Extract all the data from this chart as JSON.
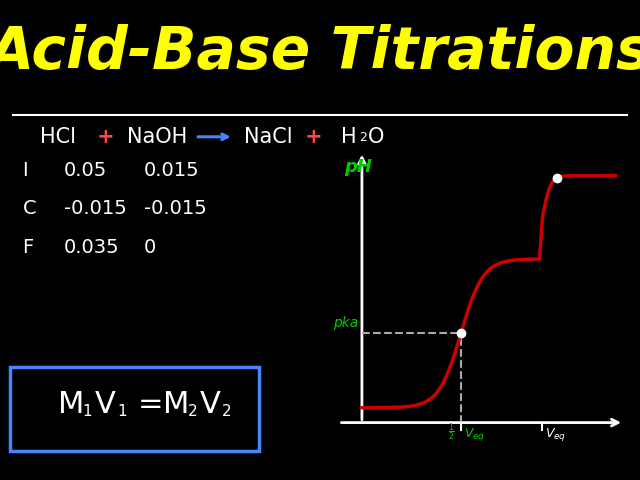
{
  "background_color": "#000000",
  "title": "Acid-Base Titrations",
  "title_color": "#FFFF00",
  "title_fontsize": 42,
  "divider_color": "#FFFFFF",
  "reaction_line": {
    "hcl": "HCl",
    "plus_color": "#FF4444",
    "naoh": "NaOH",
    "nacl": "NaCl",
    "text_color": "#FFFFFF",
    "arrow_color": "#4488FF"
  },
  "ice_table": {
    "rows": [
      "I",
      "C",
      "F"
    ],
    "hcl_vals": [
      "0.05",
      "-0.015",
      "0.035"
    ],
    "naoh_vals": [
      "0.015",
      "-0.015",
      "0"
    ],
    "color": "#FFFFFF"
  },
  "formula_box": {
    "box_color": "#4488FF",
    "text_color": "#FFFFFF",
    "fontsize": 22
  },
  "graph": {
    "curve_color": "#CC0000",
    "axis_color": "#FFFFFF",
    "ph_label_color": "#00CC00",
    "pka_label_color": "#00CC00",
    "dashed_color": "#AAAAAA",
    "dot_color": "#FFFFFF",
    "x_half_veq_color": "#00CC00",
    "x_veq_color": "#FFFFFF"
  }
}
